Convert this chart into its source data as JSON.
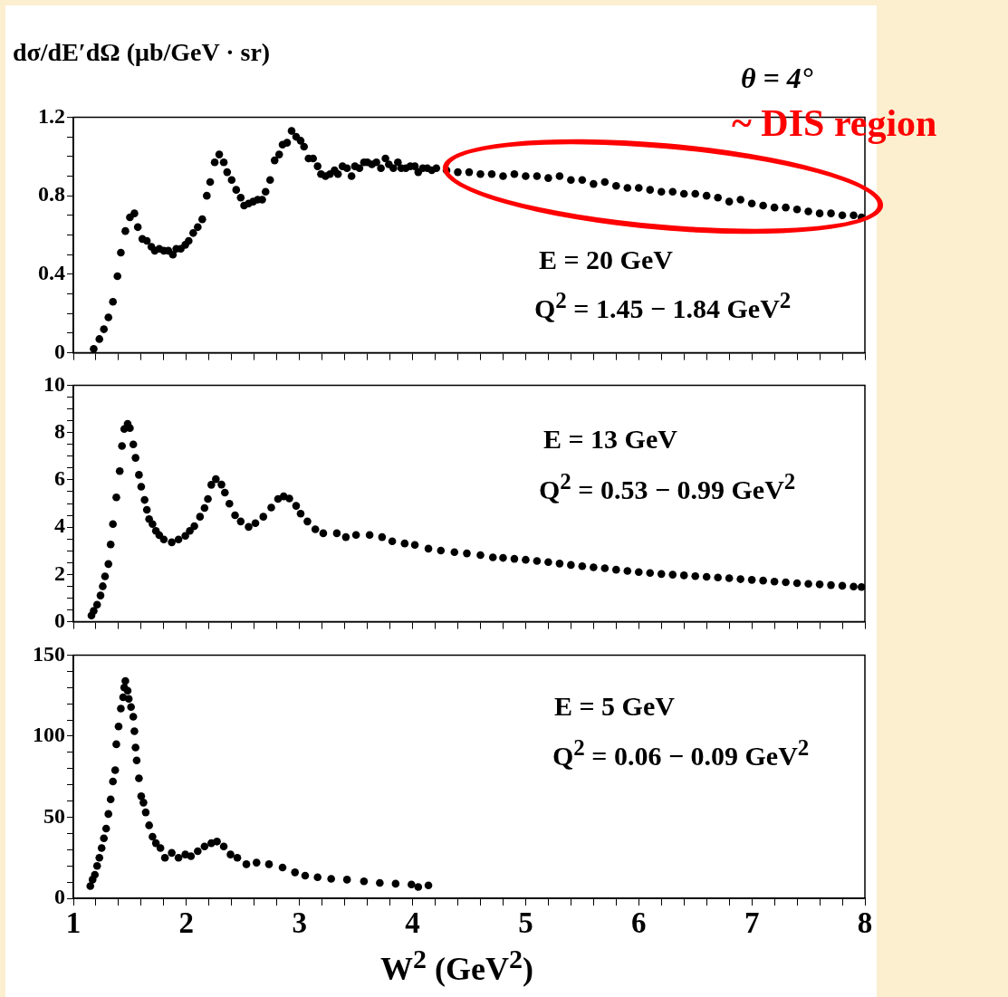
{
  "chart_data": [
    {
      "type": "scatter",
      "title": "θ = 4°",
      "ylabel": "dσ/dE′dΩ (μb/GeV · sr)",
      "annotations": [
        "~ DIS region",
        "E = 20 GeV",
        "Q$^{2}$ = 1.45 − 1.84 GeV$^{2}$"
      ],
      "xlim": [
        1,
        8
      ],
      "xticks": [
        1,
        {
          "value": 1.2,
          "label": null
        },
        {
          "value": 1.4,
          "label": null
        },
        {
          "value": 1.6,
          "label": null
        },
        {
          "value": 1.8,
          "label": null
        },
        2,
        {
          "value": 2.2,
          "label": null
        },
        {
          "value": 2.4,
          "label": null
        },
        {
          "value": 2.6,
          "label": null
        },
        {
          "value": 2.8,
          "label": null
        },
        3,
        {
          "value": 3.2,
          "label": null
        },
        {
          "value": 3.4,
          "label": null
        },
        {
          "value": 3.6,
          "label": null
        },
        {
          "value": 3.8,
          "label": null
        },
        4,
        {
          "value": 4.2,
          "label": null
        },
        {
          "value": 4.4,
          "label": null
        },
        {
          "value": 4.6,
          "label": null
        },
        {
          "value": 4.8,
          "label": null
        },
        5,
        {
          "value": 5.2,
          "label": null
        },
        {
          "value": 5.4,
          "label": null
        },
        {
          "value": 5.6,
          "label": null
        },
        {
          "value": 5.8,
          "label": null
        },
        6,
        {
          "value": 6.2,
          "label": null
        },
        {
          "value": 6.4,
          "label": null
        },
        {
          "value": 6.6,
          "label": null
        },
        {
          "value": 6.8,
          "label": null
        },
        7,
        {
          "value": 7.2,
          "label": null
        },
        {
          "value": 7.4,
          "label": null
        },
        {
          "value": 7.6,
          "label": null
        },
        {
          "value": 7.8,
          "label": null
        },
        8
      ],
      "ylim": [
        0,
        1.2
      ],
      "yticks": [
        0,
        {
          "value": 0.1,
          "label": null
        },
        {
          "value": 0.2,
          "label": null
        },
        {
          "value": 0.3,
          "label": null
        },
        0.4,
        {
          "value": 0.5,
          "label": null
        },
        {
          "value": 0.6,
          "label": null
        },
        {
          "value": 0.7,
          "label": null
        },
        0.8,
        {
          "value": 0.9,
          "label": null
        },
        {
          "value": 1.0,
          "label": null
        },
        {
          "value": 1.1,
          "label": null
        },
        1.2
      ],
      "tick_labels": "y",
      "grid": false,
      "legend": false,
      "marker": "circle",
      "series": [
        {
          "color": "#000000",
          "x": [
            1.18,
            1.23,
            1.27,
            1.31,
            1.35,
            1.39,
            1.42,
            1.46,
            1.5,
            1.54,
            1.57,
            1.61,
            1.65,
            1.69,
            1.72,
            1.76,
            1.8,
            1.84,
            1.88,
            1.91,
            1.95,
            1.99,
            2.02,
            2.06,
            2.1,
            2.14,
            2.18,
            2.21,
            2.25,
            2.29,
            2.33,
            2.36,
            2.4,
            2.44,
            2.48,
            2.51,
            2.55,
            2.59,
            2.63,
            2.67,
            2.7,
            2.74,
            2.78,
            2.82,
            2.85,
            2.89,
            2.93,
            2.97,
            3.01,
            3.04,
            3.08,
            3.12,
            3.16,
            3.19,
            3.23,
            3.27,
            3.31,
            3.34,
            3.38,
            3.42,
            3.46,
            3.49,
            3.53,
            3.57,
            3.6,
            3.64,
            3.68,
            3.72,
            3.76,
            3.79,
            3.83,
            3.87,
            3.9,
            3.94,
            3.98,
            4.02,
            4.05,
            4.09,
            4.13,
            4.17,
            4.21,
            4.3,
            4.4,
            4.5,
            4.6,
            4.7,
            4.8,
            4.9,
            5.0,
            5.1,
            5.2,
            5.3,
            5.4,
            5.5,
            5.6,
            5.7,
            5.8,
            5.9,
            6.0,
            6.1,
            6.2,
            6.3,
            6.4,
            6.5,
            6.6,
            6.7,
            6.8,
            6.9,
            7.0,
            7.1,
            7.2,
            7.3,
            7.4,
            7.5,
            7.6,
            7.7,
            7.8,
            7.9,
            7.97
          ],
          "values": [
            0.02,
            0.07,
            0.12,
            0.18,
            0.26,
            0.39,
            0.51,
            0.62,
            0.69,
            0.71,
            0.64,
            0.58,
            0.57,
            0.54,
            0.52,
            0.53,
            0.52,
            0.52,
            0.5,
            0.53,
            0.53,
            0.55,
            0.57,
            0.61,
            0.64,
            0.68,
            0.8,
            0.87,
            0.97,
            1.01,
            0.97,
            0.92,
            0.88,
            0.83,
            0.79,
            0.75,
            0.76,
            0.77,
            0.78,
            0.78,
            0.82,
            0.88,
            0.98,
            1.01,
            1.06,
            1.07,
            1.13,
            1.1,
            1.08,
            1.05,
            0.99,
            0.99,
            0.95,
            0.91,
            0.9,
            0.91,
            0.93,
            0.91,
            0.95,
            0.94,
            0.9,
            0.95,
            0.94,
            0.97,
            0.97,
            0.96,
            0.97,
            0.94,
            0.99,
            0.96,
            0.94,
            0.97,
            0.94,
            0.94,
            0.95,
            0.95,
            0.92,
            0.94,
            0.94,
            0.93,
            0.94,
            0.93,
            0.92,
            0.92,
            0.91,
            0.91,
            0.9,
            0.91,
            0.9,
            0.9,
            0.89,
            0.9,
            0.88,
            0.88,
            0.86,
            0.87,
            0.85,
            0.84,
            0.84,
            0.83,
            0.82,
            0.82,
            0.81,
            0.81,
            0.8,
            0.79,
            0.77,
            0.78,
            0.76,
            0.75,
            0.74,
            0.74,
            0.73,
            0.72,
            0.71,
            0.71,
            0.7,
            0.7,
            0.69
          ]
        }
      ]
    },
    {
      "type": "scatter",
      "annotations": [
        "E = 13 GeV",
        "Q$^{2}$ = 0.53 − 0.99 GeV$^{2}$"
      ],
      "xlim": [
        1,
        8
      ],
      "xticks": [
        1,
        {
          "value": 1.2,
          "label": null
        },
        {
          "value": 1.4,
          "label": null
        },
        {
          "value": 1.6,
          "label": null
        },
        {
          "value": 1.8,
          "label": null
        },
        2,
        {
          "value": 2.2,
          "label": null
        },
        {
          "value": 2.4,
          "label": null
        },
        {
          "value": 2.6,
          "label": null
        },
        {
          "value": 2.8,
          "label": null
        },
        3,
        {
          "value": 3.2,
          "label": null
        },
        {
          "value": 3.4,
          "label": null
        },
        {
          "value": 3.6,
          "label": null
        },
        {
          "value": 3.8,
          "label": null
        },
        4,
        {
          "value": 4.2,
          "label": null
        },
        {
          "value": 4.4,
          "label": null
        },
        {
          "value": 4.6,
          "label": null
        },
        {
          "value": 4.8,
          "label": null
        },
        5,
        {
          "value": 5.2,
          "label": null
        },
        {
          "value": 5.4,
          "label": null
        },
        {
          "value": 5.6,
          "label": null
        },
        {
          "value": 5.8,
          "label": null
        },
        6,
        {
          "value": 6.2,
          "label": null
        },
        {
          "value": 6.4,
          "label": null
        },
        {
          "value": 6.6,
          "label": null
        },
        {
          "value": 6.8,
          "label": null
        },
        7,
        {
          "value": 7.2,
          "label": null
        },
        {
          "value": 7.4,
          "label": null
        },
        {
          "value": 7.6,
          "label": null
        },
        {
          "value": 7.8,
          "label": null
        },
        8
      ],
      "ylim": [
        0,
        10
      ],
      "yticks": [
        0,
        {
          "value": 0.5,
          "label": null
        },
        {
          "value": 1,
          "label": null
        },
        {
          "value": 1.5,
          "label": null
        },
        2,
        {
          "value": 2.5,
          "label": null
        },
        {
          "value": 3,
          "label": null
        },
        {
          "value": 3.5,
          "label": null
        },
        4,
        {
          "value": 4.5,
          "label": null
        },
        {
          "value": 5,
          "label": null
        },
        {
          "value": 5.5,
          "label": null
        },
        6,
        {
          "value": 6.5,
          "label": null
        },
        {
          "value": 7,
          "label": null
        },
        {
          "value": 7.5,
          "label": null
        },
        8,
        {
          "value": 8.5,
          "label": null
        },
        {
          "value": 9,
          "label": null
        },
        {
          "value": 9.5,
          "label": null
        },
        10
      ],
      "tick_labels": "y",
      "grid": false,
      "legend": false,
      "marker": "circle",
      "series": [
        {
          "color": "#000000",
          "x": [
            1.16,
            1.18,
            1.21,
            1.24,
            1.26,
            1.28,
            1.31,
            1.33,
            1.35,
            1.38,
            1.41,
            1.43,
            1.45,
            1.48,
            1.5,
            1.53,
            1.55,
            1.58,
            1.6,
            1.63,
            1.65,
            1.67,
            1.7,
            1.73,
            1.76,
            1.8,
            1.87,
            1.93,
            1.99,
            2.03,
            2.07,
            2.12,
            2.16,
            2.19,
            2.22,
            2.26,
            2.31,
            2.34,
            2.38,
            2.43,
            2.48,
            2.55,
            2.61,
            2.68,
            2.75,
            2.81,
            2.86,
            2.91,
            2.97,
            3.01,
            3.07,
            3.14,
            3.21,
            3.33,
            3.41,
            3.5,
            3.62,
            3.73,
            3.82,
            3.93,
            4.02,
            4.14,
            4.25,
            4.37,
            4.48,
            4.6,
            4.71,
            4.8,
            4.9,
            5.0,
            5.1,
            5.2,
            5.3,
            5.4,
            5.5,
            5.6,
            5.7,
            5.8,
            5.9,
            6.0,
            6.1,
            6.2,
            6.3,
            6.4,
            6.5,
            6.6,
            6.7,
            6.8,
            6.9,
            7.0,
            7.1,
            7.2,
            7.3,
            7.4,
            7.5,
            7.6,
            7.7,
            7.8,
            7.9,
            7.97
          ],
          "values": [
            0.26,
            0.46,
            0.72,
            1.11,
            1.5,
            1.92,
            2.44,
            3.27,
            4.13,
            5.26,
            6.37,
            7.43,
            8.15,
            8.37,
            8.19,
            7.5,
            6.93,
            6.21,
            5.71,
            5.15,
            4.73,
            4.34,
            4.13,
            3.84,
            3.66,
            3.48,
            3.36,
            3.48,
            3.63,
            3.84,
            4.04,
            4.44,
            4.81,
            5.19,
            5.79,
            6.03,
            5.8,
            5.46,
            4.99,
            4.5,
            4.24,
            4.01,
            4.17,
            4.44,
            4.83,
            5.19,
            5.3,
            5.21,
            4.9,
            4.57,
            4.24,
            3.91,
            3.74,
            3.74,
            3.58,
            3.67,
            3.67,
            3.58,
            3.4,
            3.31,
            3.25,
            3.09,
            3.01,
            2.94,
            2.89,
            2.82,
            2.72,
            2.7,
            2.66,
            2.62,
            2.57,
            2.52,
            2.46,
            2.4,
            2.35,
            2.3,
            2.26,
            2.2,
            2.15,
            2.1,
            2.06,
            2.02,
            1.99,
            1.96,
            1.93,
            1.9,
            1.87,
            1.84,
            1.8,
            1.77,
            1.74,
            1.7,
            1.67,
            1.63,
            1.6,
            1.58,
            1.55,
            1.52,
            1.49,
            1.47
          ]
        }
      ]
    },
    {
      "type": "scatter",
      "xlabel": "W$^{2}$  (GeV$^{2}$)",
      "annotations": [
        "E = 5 GeV",
        "Q$^{2}$ = 0.06 − 0.09 GeV$^{2}$"
      ],
      "xlim": [
        1,
        8
      ],
      "xticks": [
        1,
        {
          "value": 1.2,
          "label": null
        },
        {
          "value": 1.4,
          "label": null
        },
        {
          "value": 1.6,
          "label": null
        },
        {
          "value": 1.8,
          "label": null
        },
        2,
        {
          "value": 2.2,
          "label": null
        },
        {
          "value": 2.4,
          "label": null
        },
        {
          "value": 2.6,
          "label": null
        },
        {
          "value": 2.8,
          "label": null
        },
        3,
        {
          "value": 3.2,
          "label": null
        },
        {
          "value": 3.4,
          "label": null
        },
        {
          "value": 3.6,
          "label": null
        },
        {
          "value": 3.8,
          "label": null
        },
        4,
        {
          "value": 4.2,
          "label": null
        },
        {
          "value": 4.4,
          "label": null
        },
        {
          "value": 4.6,
          "label": null
        },
        {
          "value": 4.8,
          "label": null
        },
        5,
        {
          "value": 5.2,
          "label": null
        },
        {
          "value": 5.4,
          "label": null
        },
        {
          "value": 5.6,
          "label": null
        },
        {
          "value": 5.8,
          "label": null
        },
        6,
        {
          "value": 6.2,
          "label": null
        },
        {
          "value": 6.4,
          "label": null
        },
        {
          "value": 6.6,
          "label": null
        },
        {
          "value": 6.8,
          "label": null
        },
        7,
        {
          "value": 7.2,
          "label": null
        },
        {
          "value": 7.4,
          "label": null
        },
        {
          "value": 7.6,
          "label": null
        },
        {
          "value": 7.8,
          "label": null
        },
        8
      ],
      "ylim": [
        0,
        150
      ],
      "yticks": [
        0,
        {
          "value": 10,
          "label": null
        },
        {
          "value": 20,
          "label": null
        },
        {
          "value": 30,
          "label": null
        },
        {
          "value": 40,
          "label": null
        },
        50,
        {
          "value": 60,
          "label": null
        },
        {
          "value": 70,
          "label": null
        },
        {
          "value": 80,
          "label": null
        },
        {
          "value": 90,
          "label": null
        },
        100,
        {
          "value": 110,
          "label": null
        },
        {
          "value": 120,
          "label": null
        },
        {
          "value": 130,
          "label": null
        },
        {
          "value": 140,
          "label": null
        },
        150
      ],
      "grid": false,
      "legend": false,
      "marker": "circle",
      "series": [
        {
          "color": "#000000",
          "x": [
            1.15,
            1.17,
            1.19,
            1.21,
            1.23,
            1.25,
            1.27,
            1.29,
            1.31,
            1.33,
            1.35,
            1.37,
            1.38,
            1.4,
            1.42,
            1.44,
            1.45,
            1.46,
            1.48,
            1.49,
            1.51,
            1.53,
            1.54,
            1.55,
            1.56,
            1.58,
            1.6,
            1.62,
            1.64,
            1.67,
            1.7,
            1.73,
            1.77,
            1.81,
            1.87,
            1.93,
            1.99,
            2.04,
            2.1,
            2.16,
            2.22,
            2.27,
            2.33,
            2.39,
            2.45,
            2.53,
            2.62,
            2.73,
            2.85,
            2.96,
            3.05,
            3.16,
            3.28,
            3.42,
            3.57,
            3.71,
            3.85,
            3.99,
            4.05,
            4.14
          ],
          "values": [
            7.5,
            11.5,
            14.5,
            20,
            25,
            31,
            37,
            43,
            52,
            61,
            72,
            79,
            95,
            106,
            117,
            124,
            130,
            134,
            128,
            123,
            118,
            112,
            103,
            93,
            85,
            74,
            63,
            59,
            53,
            45,
            38,
            34,
            31,
            25,
            28,
            25,
            27,
            26,
            29,
            32,
            34,
            35,
            32,
            27,
            25,
            21,
            22,
            21,
            19,
            16,
            14,
            13,
            12,
            11.5,
            10.5,
            9.5,
            9,
            8.5,
            7,
            8
          ]
        }
      ]
    }
  ]
}
